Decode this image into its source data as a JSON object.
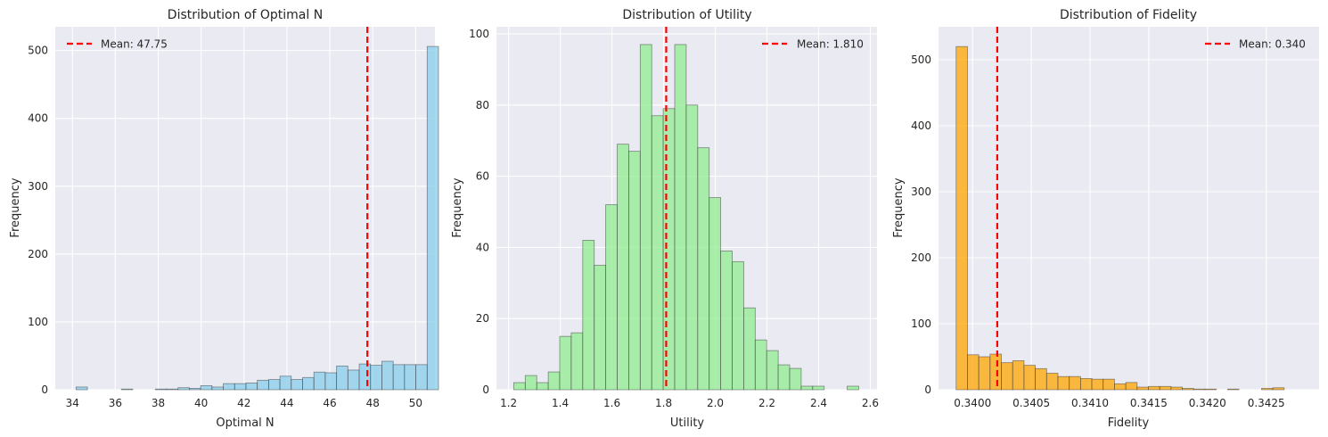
{
  "chart_data": [
    {
      "type": "bar",
      "title": "Distribution of Optimal N",
      "xlabel": "Optimal N",
      "ylabel": "Frequency",
      "color": "#87CEEB",
      "xlim": [
        33.2,
        50.9
      ],
      "ylim": [
        0,
        535
      ],
      "xticks": [
        34,
        36,
        38,
        40,
        42,
        44,
        46,
        48,
        50
      ],
      "xtick_labels": [
        "34",
        "36",
        "38",
        "40",
        "42",
        "44",
        "46",
        "48",
        "50"
      ],
      "yticks": [
        0,
        100,
        200,
        300,
        400,
        500
      ],
      "ytick_labels": [
        "0",
        "100",
        "200",
        "300",
        "400",
        "500"
      ],
      "bin_start": 34.17,
      "bin_width": 0.528,
      "values": [
        4,
        0,
        0,
        0,
        1,
        0,
        0,
        1,
        1,
        3,
        2,
        6,
        4,
        9,
        9,
        10,
        14,
        15,
        20,
        15,
        18,
        26,
        25,
        35,
        29,
        38,
        36,
        42,
        37,
        37,
        37,
        506
      ],
      "mean": 47.75,
      "legend": {
        "label": "Mean: 47.75",
        "placement": "top-left"
      },
      "grid": true
    },
    {
      "type": "bar",
      "title": "Distribution of Utility",
      "xlabel": "Utility",
      "ylabel": "Frequency",
      "color": "#90EE90",
      "xlim": [
        1.153,
        2.626
      ],
      "ylim": [
        0,
        102
      ],
      "xticks": [
        1.2,
        1.4,
        1.6,
        1.8,
        2.0,
        2.2,
        2.4,
        2.6
      ],
      "xtick_labels": [
        "1.2",
        "1.4",
        "1.6",
        "1.8",
        "2.0",
        "2.2",
        "2.4",
        "2.6"
      ],
      "yticks": [
        0,
        20,
        40,
        60,
        80,
        100
      ],
      "ytick_labels": [
        "0",
        "20",
        "40",
        "60",
        "80",
        "100"
      ],
      "bin_start": 1.22,
      "bin_width": 0.0445,
      "values": [
        2,
        4,
        2,
        5,
        15,
        16,
        42,
        35,
        52,
        69,
        67,
        97,
        77,
        79,
        97,
        80,
        68,
        54,
        39,
        36,
        23,
        14,
        11,
        7,
        6,
        1,
        1,
        0,
        0,
        1
      ],
      "mean": 1.81,
      "legend": {
        "label": "Mean: 1.810",
        "placement": "top-right"
      },
      "grid": true
    },
    {
      "type": "bar",
      "title": "Distribution of Fidelity",
      "xlabel": "Fidelity",
      "ylabel": "Frequency",
      "color": "#FFA500",
      "xlim": [
        0.33971,
        0.34295
      ],
      "ylim": [
        0,
        550
      ],
      "xticks": [
        0.34,
        0.3405,
        0.341,
        0.3415,
        0.342,
        0.3425
      ],
      "xtick_labels": [
        "0.3400",
        "0.3405",
        "0.3410",
        "0.3415",
        "0.3420",
        "0.3425"
      ],
      "yticks": [
        0,
        100,
        200,
        300,
        400,
        500
      ],
      "ytick_labels": [
        "0",
        "100",
        "200",
        "300",
        "400",
        "500"
      ],
      "bin_start": 0.33986,
      "bin_width": 9.63e-05,
      "values": [
        520,
        53,
        50,
        54,
        41,
        44,
        37,
        32,
        25,
        20,
        20,
        17,
        16,
        16,
        9,
        11,
        4,
        5,
        5,
        4,
        2,
        1,
        1,
        0,
        1,
        0,
        0,
        2,
        3
      ],
      "mean": 0.34021,
      "legend": {
        "label": "Mean: 0.340",
        "placement": "top-right"
      },
      "grid": true
    }
  ],
  "style": {
    "plot_bg": "#EAEAF2",
    "grid_color": "#FFFFFF",
    "edge_color": "#333333",
    "mean_line_color": "#FF0000"
  }
}
